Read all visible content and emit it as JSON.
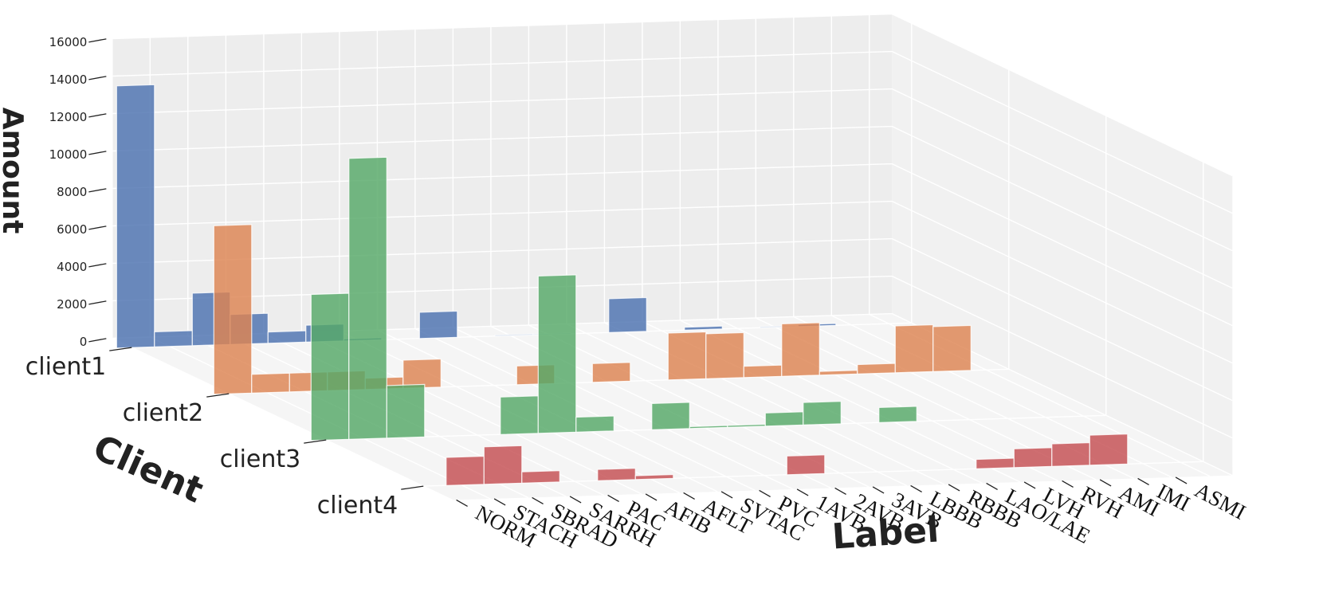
{
  "chart_data": {
    "type": "bar3d",
    "title": "",
    "xlabel": "Label",
    "ylabel": "Client",
    "zlabel": "Amount",
    "zlim": [
      0,
      16000
    ],
    "z_ticks": [
      0,
      2000,
      4000,
      6000,
      8000,
      10000,
      12000,
      14000,
      16000
    ],
    "z_tick_labels": [
      "0",
      "2000",
      "4000",
      "6000",
      "8000",
      "10000",
      "12000",
      "14000",
      "16000"
    ],
    "categories": [
      "NORM",
      "STACH",
      "SBRAD",
      "SARRH",
      "PAC",
      "AFIB",
      "AFLT",
      "SVTAC",
      "PVC",
      "1AVB",
      "2AVB",
      "3AVB",
      "LBBB",
      "RBBB",
      "LAO/LAE",
      "LVH",
      "RVH",
      "AMI",
      "IMI",
      "ASMI"
    ],
    "clients": [
      "client1",
      "client2",
      "client3",
      "client4"
    ],
    "series": [
      {
        "name": "client1",
        "color": "#4c72b0",
        "values": [
          14000,
          800,
          2800,
          1600,
          600,
          900,
          100,
          0,
          1400,
          0,
          50,
          30,
          0,
          1800,
          0,
          150,
          0,
          50,
          100,
          0
        ]
      },
      {
        "name": "client2",
        "color": "#dd8452",
        "values": [
          9000,
          1000,
          1000,
          1000,
          600,
          1500,
          0,
          0,
          1000,
          0,
          1000,
          0,
          2500,
          2400,
          600,
          2800,
          200,
          500,
          2500,
          2400
        ]
      },
      {
        "name": "client3",
        "color": "#55a868",
        "values": [
          7800,
          15000,
          2800,
          0,
          0,
          2000,
          8400,
          800,
          0,
          1400,
          100,
          100,
          700,
          1200,
          0,
          800,
          0,
          0,
          0,
          0
        ]
      },
      {
        "name": "client4",
        "color": "#c44e52",
        "values": [
          0,
          1500,
          2000,
          600,
          0,
          600,
          200,
          0,
          0,
          0,
          1000,
          0,
          0,
          0,
          0,
          500,
          1000,
          1200,
          1600,
          0
        ]
      }
    ]
  }
}
